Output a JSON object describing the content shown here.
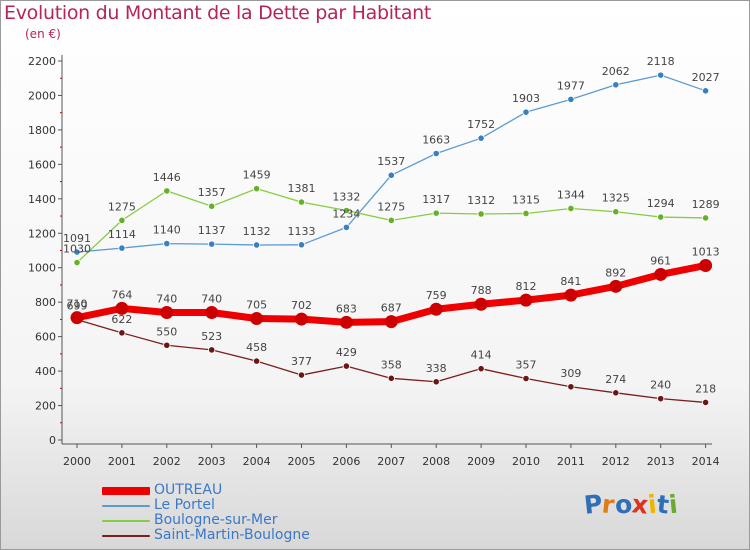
{
  "title": "Evolution du Montant de la Dette par Habitant",
  "subtitle": "(en €)",
  "logo": {
    "letters": [
      "P",
      "r",
      "o",
      "x",
      "i",
      "t",
      "i"
    ],
    "colors": [
      "#2e6fb8",
      "#e07b18",
      "#2e6fb8",
      "#e0301e",
      "#f0b400",
      "#2e6fb8",
      "#6aab2f"
    ]
  },
  "chart_data": {
    "type": "line",
    "x": [
      "2000",
      "2001",
      "2002",
      "2003",
      "2004",
      "2005",
      "2006",
      "2007",
      "2008",
      "2009",
      "2010",
      "2011",
      "2012",
      "2013",
      "2014"
    ],
    "ylim": [
      0,
      2200
    ],
    "yticks": [
      "0",
      "200",
      "400",
      "600",
      "800",
      "1000",
      "1200",
      "1400",
      "1600",
      "1800",
      "2000",
      "2200"
    ],
    "grid": false,
    "legend_position": "bottom-left",
    "series": [
      {
        "name": "OUTREAU",
        "color": "#ee0000",
        "values": [
          710,
          764,
          740,
          740,
          705,
          702,
          683,
          687,
          759,
          788,
          812,
          841,
          892,
          961,
          1013
        ]
      },
      {
        "name": "Le Portel",
        "color": "#5b9bd5",
        "values": [
          1091,
          1114,
          1140,
          1137,
          1132,
          1133,
          1234,
          1537,
          1663,
          1752,
          1903,
          1977,
          2062,
          2118,
          2027
        ]
      },
      {
        "name": "Boulogne-sur-Mer",
        "color": "#88cc44",
        "values": [
          1030,
          1275,
          1446,
          1357,
          1459,
          1381,
          1332,
          1275,
          1317,
          1312,
          1315,
          1344,
          1325,
          1294,
          1289
        ]
      },
      {
        "name": "Saint-Martin-Boulogne",
        "color": "#7a1f1f",
        "values": [
          699,
          622,
          550,
          523,
          458,
          377,
          429,
          358,
          338,
          414,
          357,
          309,
          274,
          240,
          218
        ]
      }
    ]
  }
}
